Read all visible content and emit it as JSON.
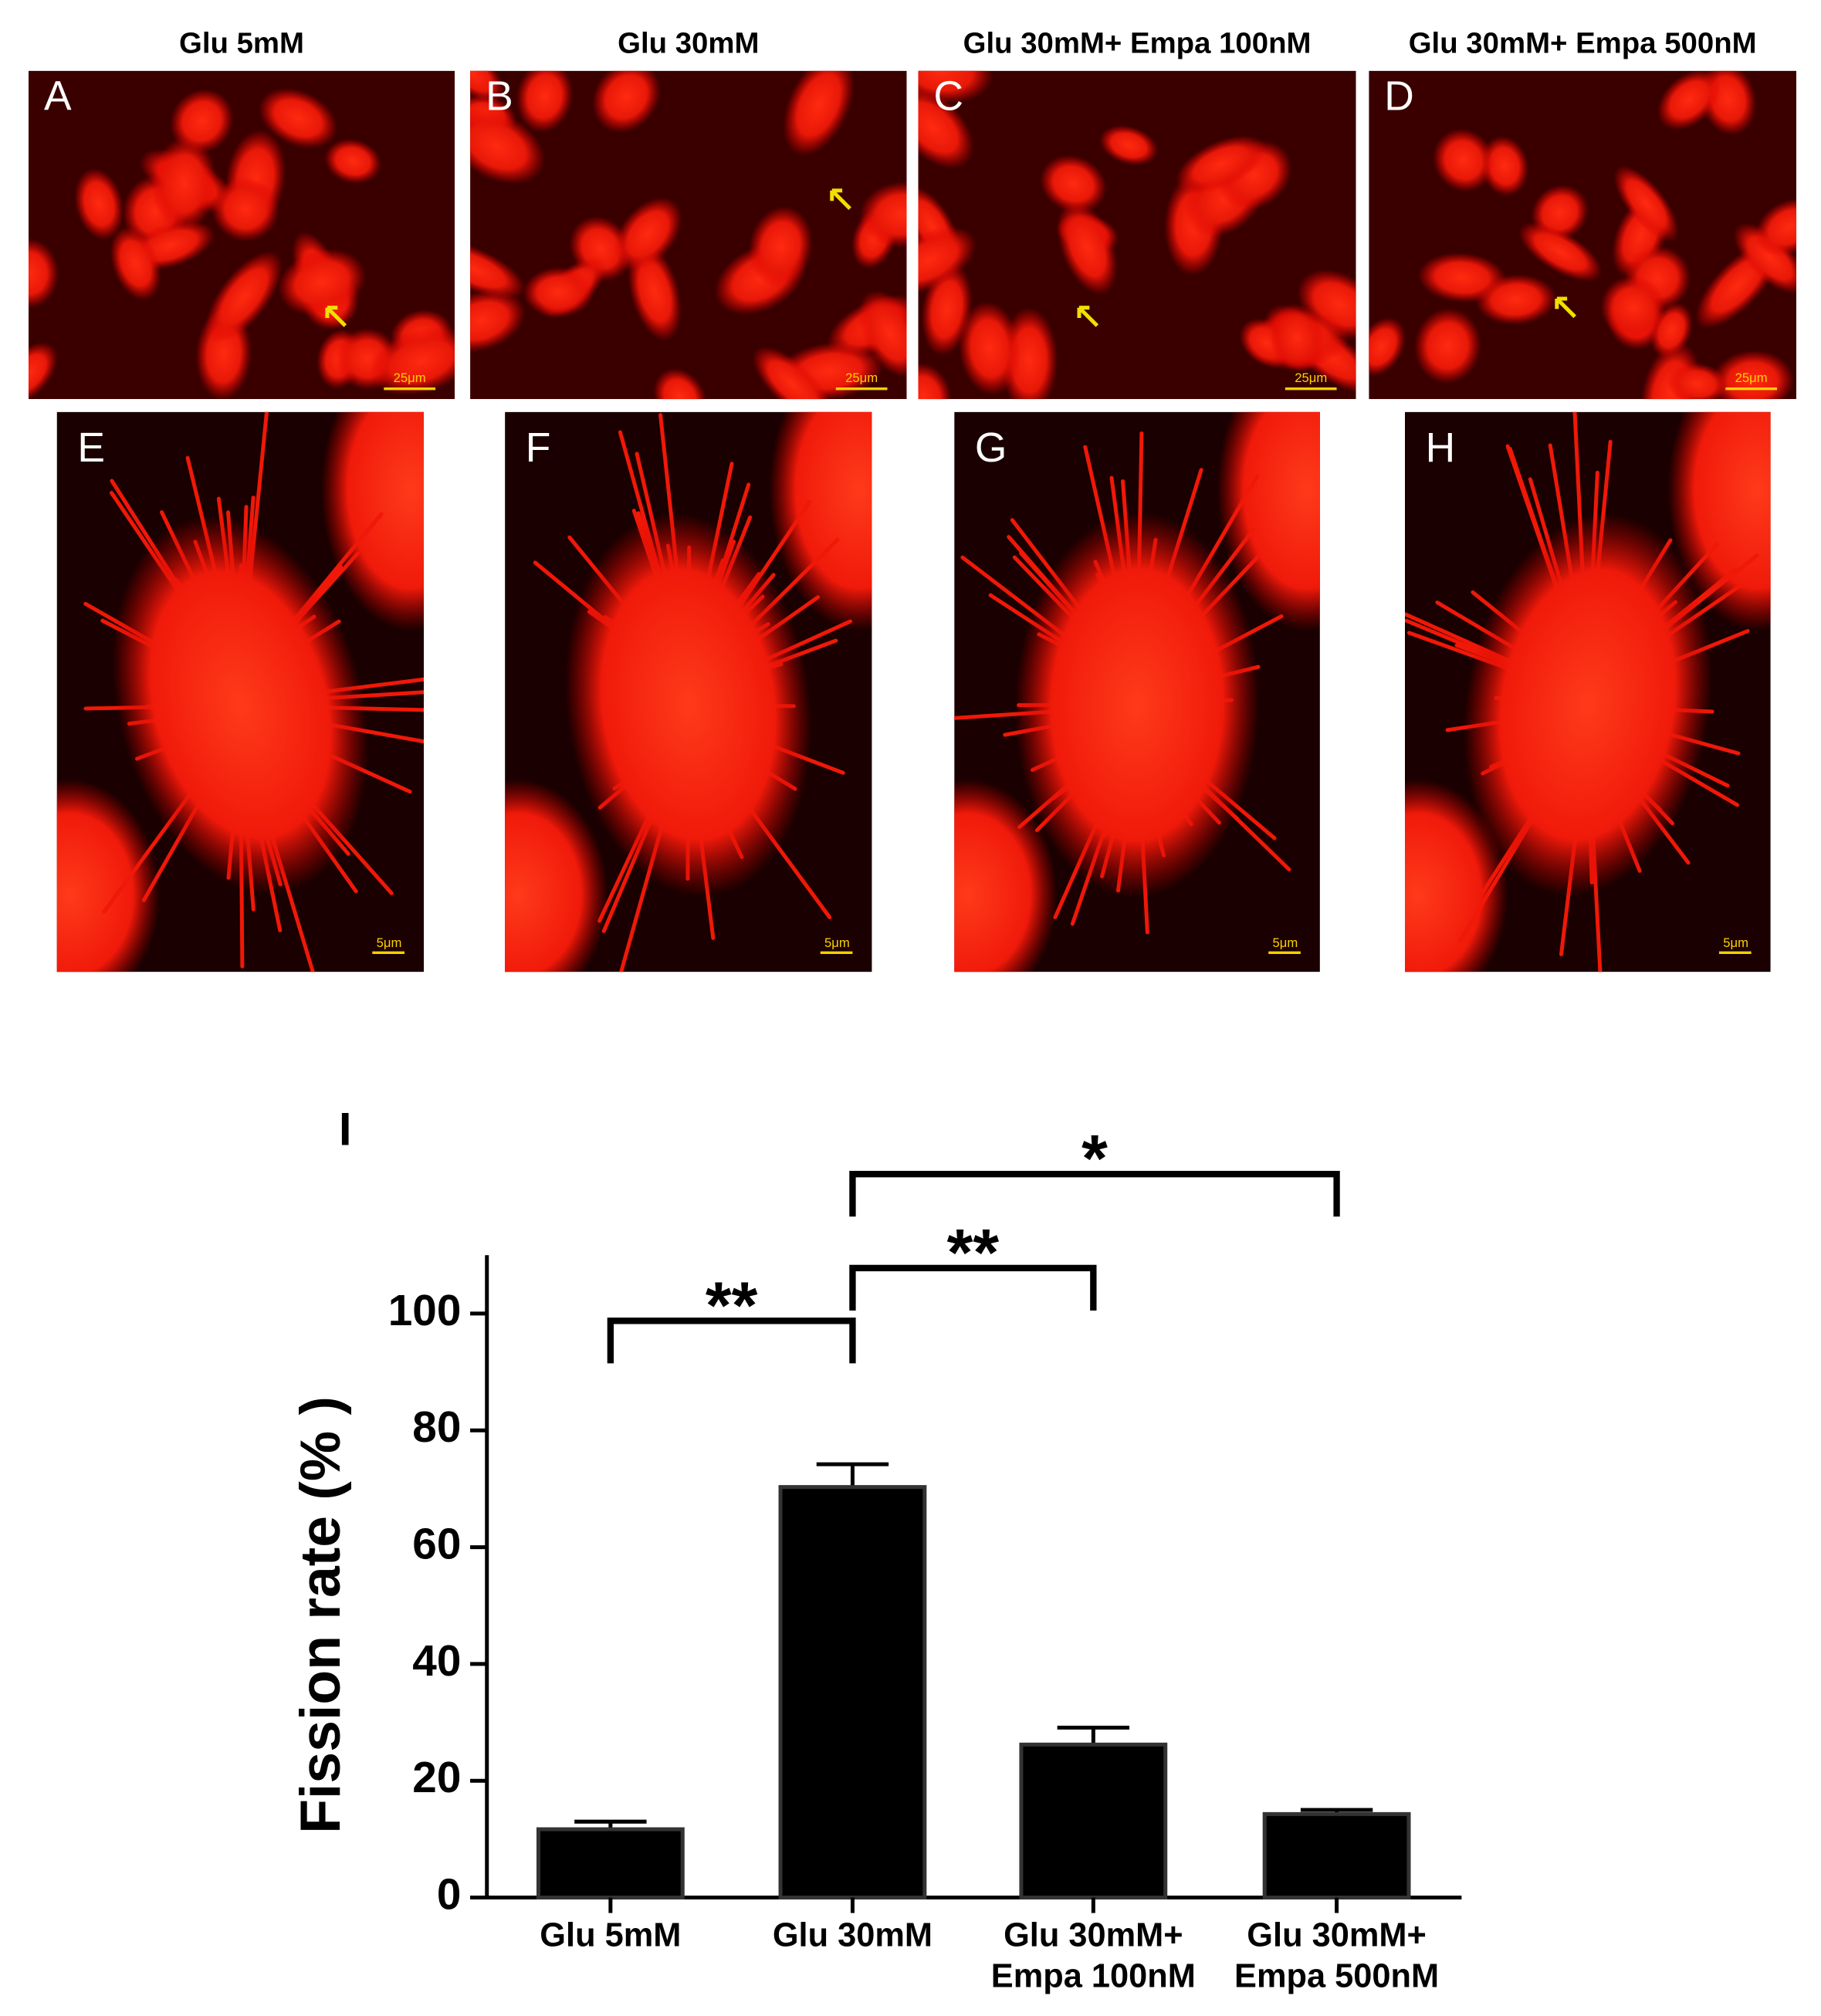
{
  "panels": {
    "headers": [
      "Glu 5mM",
      "Glu 30mM",
      "Glu 30mM+ Empa 100nM",
      "Glu 30mM+ Empa 500nM"
    ],
    "top": [
      {
        "label": "A",
        "scale_bar": "25μm"
      },
      {
        "label": "B",
        "scale_bar": "25μm"
      },
      {
        "label": "C",
        "scale_bar": "25μm"
      },
      {
        "label": "D",
        "scale_bar": "25μm"
      }
    ],
    "bottom": [
      {
        "label": "E",
        "scale_bar": "5μm"
      },
      {
        "label": "F",
        "scale_bar": "5μm"
      },
      {
        "label": "G",
        "scale_bar": "5μm"
      },
      {
        "label": "H",
        "scale_bar": "5μm"
      }
    ]
  },
  "chart_data": {
    "type": "bar",
    "panel_label": "I",
    "y_label": "Fission rate (% )",
    "categories": [
      "Glu 5mM",
      "Glu 30mM",
      "Glu 30mM+ Empa 100nM",
      "Glu 30mM+ Empa 500nM"
    ],
    "values": [
      11.7,
      70.3,
      26.2,
      14.3
    ],
    "errors": [
      1.3,
      3.9,
      2.9,
      0.7
    ],
    "color": "#000000",
    "ylim": [
      0,
      110
    ],
    "yticks": [
      0,
      20,
      40,
      60,
      80,
      100
    ],
    "significance": [
      "**",
      "**",
      "*"
    ]
  }
}
